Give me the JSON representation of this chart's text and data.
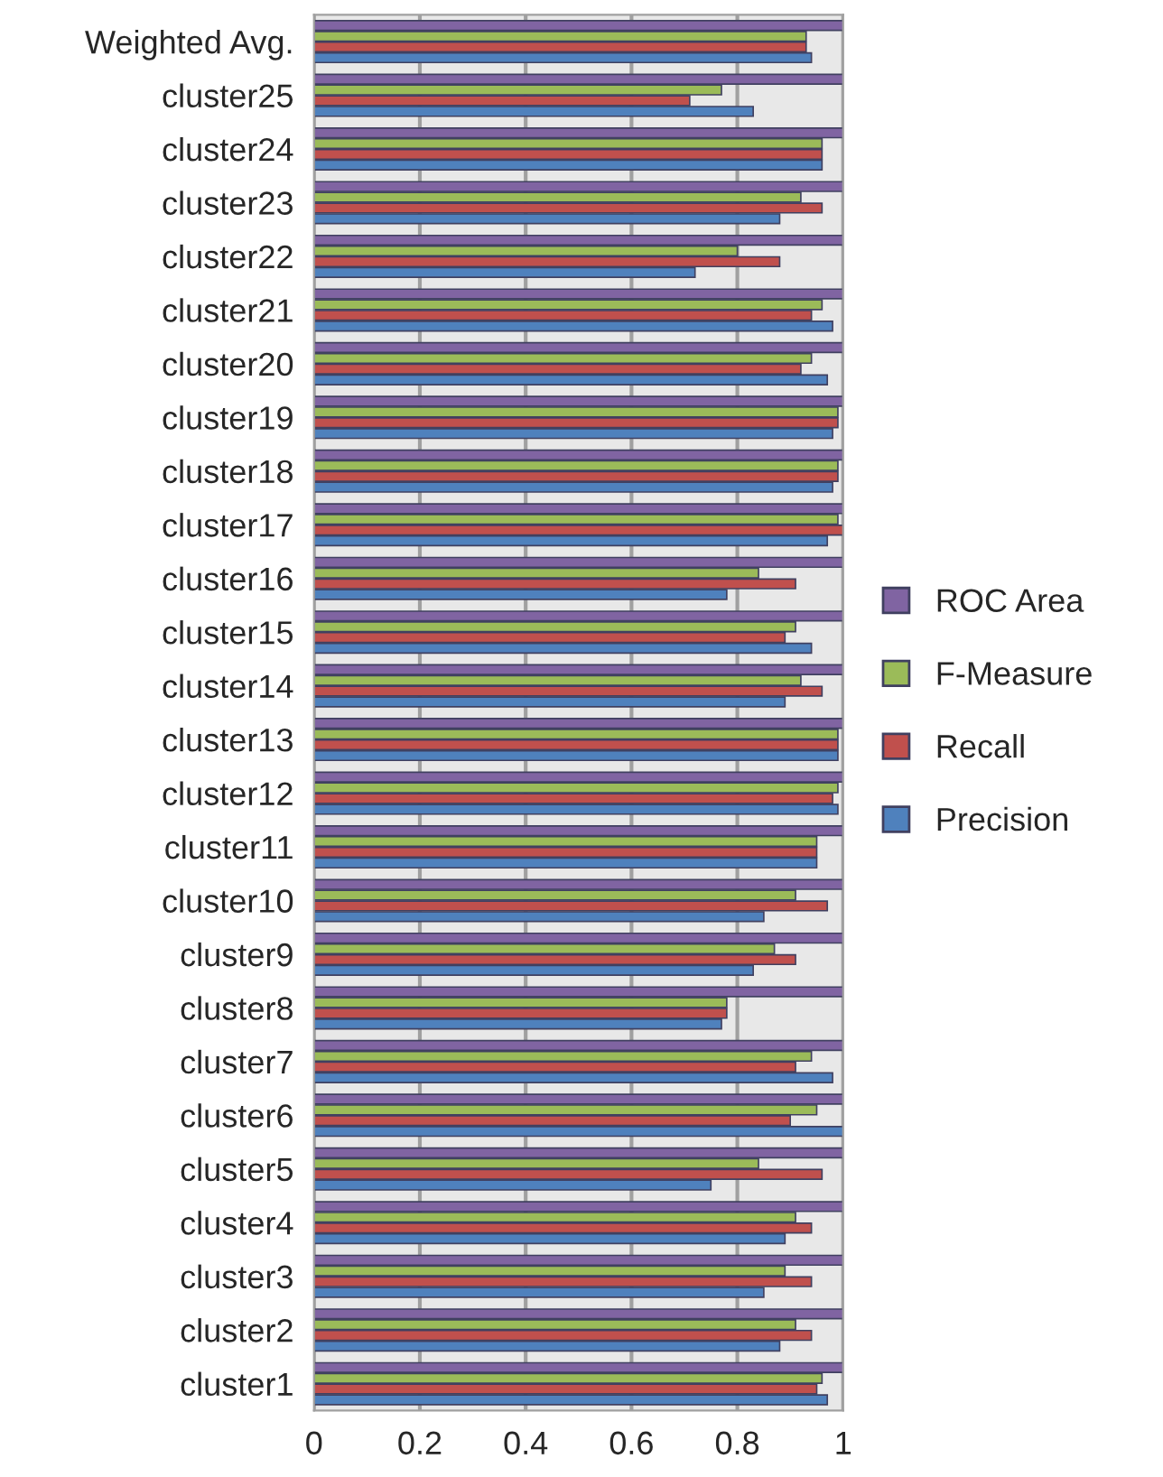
{
  "chart_data": {
    "type": "bar",
    "orientation": "horizontal",
    "categories": [
      "Weighted Avg.",
      "cluster25",
      "cluster24",
      "cluster23",
      "cluster22",
      "cluster21",
      "cluster20",
      "cluster19",
      "cluster18",
      "cluster17",
      "cluster16",
      "cluster15",
      "cluster14",
      "cluster13",
      "cluster12",
      "cluster11",
      "cluster10",
      "cluster9",
      "cluster8",
      "cluster7",
      "cluster6",
      "cluster5",
      "cluster4",
      "cluster3",
      "cluster2",
      "cluster1"
    ],
    "series": [
      {
        "name": "Precision",
        "color": "#4f81bd",
        "values": [
          0.94,
          0.83,
          0.96,
          0.88,
          0.72,
          0.98,
          0.97,
          0.98,
          0.98,
          0.97,
          0.78,
          0.94,
          0.89,
          0.99,
          0.99,
          0.95,
          0.85,
          0.83,
          0.77,
          0.98,
          1.0,
          0.75,
          0.89,
          0.85,
          0.88,
          0.97
        ]
      },
      {
        "name": "Recall",
        "color": "#c0504d",
        "values": [
          0.93,
          0.71,
          0.96,
          0.96,
          0.88,
          0.94,
          0.92,
          0.99,
          0.99,
          1.0,
          0.91,
          0.89,
          0.96,
          0.99,
          0.98,
          0.95,
          0.97,
          0.91,
          0.78,
          0.91,
          0.9,
          0.96,
          0.94,
          0.94,
          0.94,
          0.95
        ]
      },
      {
        "name": "F-Measure",
        "color": "#9bbb59",
        "values": [
          0.93,
          0.77,
          0.96,
          0.92,
          0.8,
          0.96,
          0.94,
          0.99,
          0.99,
          0.99,
          0.84,
          0.91,
          0.92,
          0.99,
          0.99,
          0.95,
          0.91,
          0.87,
          0.78,
          0.94,
          0.95,
          0.84,
          0.91,
          0.89,
          0.91,
          0.96
        ]
      },
      {
        "name": "ROC Area",
        "color": "#8064a2",
        "values": [
          1.0,
          1.0,
          1.0,
          1.0,
          1.0,
          1.0,
          1.0,
          1.0,
          1.0,
          1.0,
          1.0,
          1.0,
          1.0,
          1.0,
          1.0,
          1.0,
          1.0,
          1.0,
          1.0,
          1.0,
          1.0,
          1.0,
          1.0,
          1.0,
          1.0,
          1.0
        ]
      }
    ],
    "xlim": [
      0,
      1
    ],
    "xticks": [
      0,
      0.2,
      0.4,
      0.6,
      0.8,
      1
    ],
    "grid": "x",
    "legend": "right"
  }
}
